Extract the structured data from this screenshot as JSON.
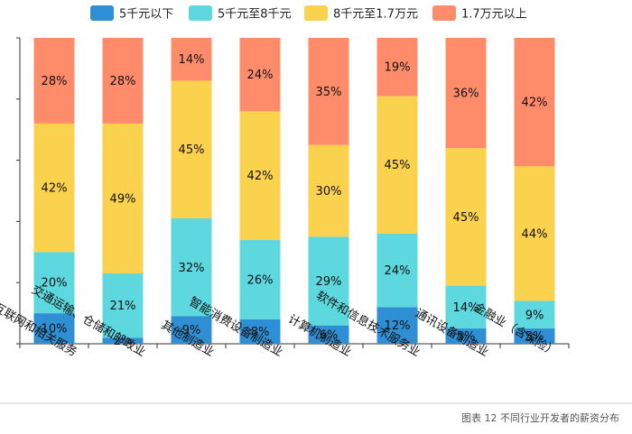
{
  "caption": "图表 12  不同行业开发者的薪资分布",
  "colors": {
    "background": "#ffffff",
    "axis": "#333333",
    "divider": "#cccccc",
    "caption_text": "#555555"
  },
  "chart_data": {
    "type": "bar",
    "stacked": true,
    "percent_stacked": true,
    "ylim": [
      0,
      100
    ],
    "grid": false,
    "legend_position": "top",
    "categories": [
      "互联网和相关服务",
      "交通运输、仓储和邮政业",
      "其他制造业",
      "智能消费设备制造业",
      "计算机制造业",
      "软件和信息技术服务业",
      "通讯设备制造业",
      "金融业（含保险）"
    ],
    "series": [
      {
        "name": "5千元以下",
        "color": "#2E8FD5",
        "values": [
          10,
          2,
          9,
          8,
          6,
          12,
          5,
          5
        ],
        "labels": [
          "10%",
          "2%",
          "9%",
          "8%",
          "6%",
          "12%",
          "5%",
          "5%"
        ]
      },
      {
        "name": "5千元至8千元",
        "color": "#5CD8DE",
        "values": [
          20,
          21,
          32,
          26,
          29,
          24,
          14,
          9
        ],
        "labels": [
          "20%",
          "21%",
          "32%",
          "26%",
          "29%",
          "24%",
          "14%",
          "9%"
        ]
      },
      {
        "name": "8千元至1.7万元",
        "color": "#FAD24E",
        "values": [
          42,
          49,
          45,
          42,
          30,
          45,
          45,
          44
        ],
        "labels": [
          "42%",
          "49%",
          "45%",
          "42%",
          "30%",
          "45%",
          "45%",
          "44%"
        ]
      },
      {
        "name": "1.7万元以上",
        "color": "#FE8C6A",
        "values": [
          28,
          28,
          14,
          24,
          35,
          19,
          36,
          42
        ],
        "labels": [
          "28%",
          "28%",
          "14%",
          "24%",
          "35%",
          "19%",
          "36%",
          "42%"
        ]
      }
    ]
  }
}
